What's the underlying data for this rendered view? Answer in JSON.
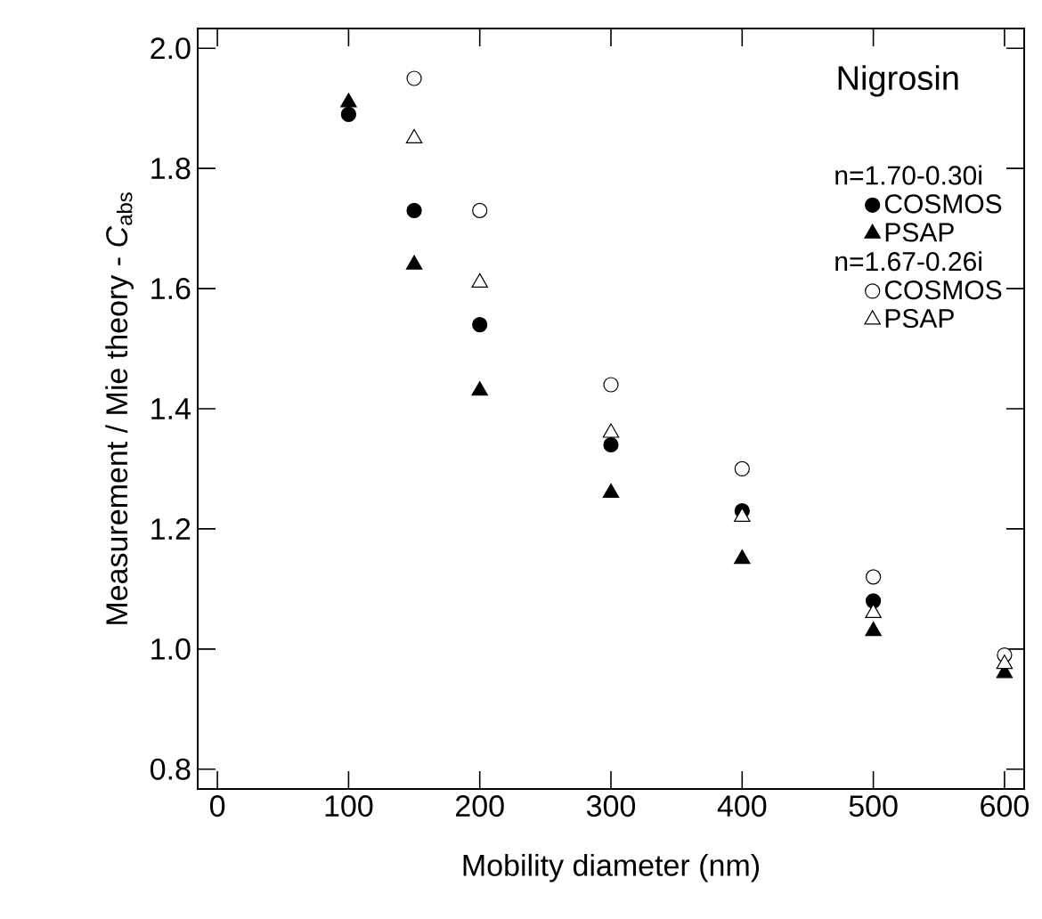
{
  "chart_data": {
    "type": "scatter",
    "xlabel": "Mobility diameter (nm)",
    "ylabel": "Measurement / Mie theory - *C*$_{abs}$",
    "annotations": [
      "Nigrosin",
      "n=1.70-0.30i",
      "n=1.67-0.26i"
    ],
    "xlim": [
      -15,
      615
    ],
    "ylim": [
      0.767,
      2.033
    ],
    "xticks": [
      0,
      100,
      200,
      300,
      400,
      500,
      600
    ],
    "yticks": [
      {
        "value": 0.8,
        "label": "0.8"
      },
      {
        "value": 1.0,
        "label": "1.0"
      },
      {
        "value": 1.2,
        "label": "1.2"
      },
      {
        "value": 1.4,
        "label": "1.4"
      },
      {
        "value": 1.6,
        "label": "1.6"
      },
      {
        "value": 1.8,
        "label": "1.8"
      },
      {
        "value": 2.0,
        "label": "2.0"
      }
    ],
    "legend": "top right",
    "grid": false,
    "series": [
      {
        "name": "COSMOS",
        "color": "#000000",
        "marker": "circle",
        "x": [
          100,
          150,
          200,
          300,
          400,
          500
        ],
        "values": [
          1.89,
          1.73,
          1.54,
          1.34,
          1.23,
          1.08
        ]
      },
      {
        "name": "PSAP",
        "color": "#000000",
        "marker": "triangle",
        "x": [
          100,
          150,
          200,
          300,
          400,
          500,
          600
        ],
        "values": [
          1.91,
          1.64,
          1.43,
          1.26,
          1.15,
          1.03,
          0.96
        ]
      },
      {
        "name": "COSMOS",
        "color": "#ffffff",
        "marker": "circle",
        "x": [
          150,
          200,
          300,
          400,
          500,
          600
        ],
        "values": [
          1.95,
          1.73,
          1.44,
          1.3,
          1.12,
          0.99
        ]
      },
      {
        "name": "PSAP",
        "color": "#ffffff",
        "marker": "triangle",
        "x": [
          150,
          200,
          300,
          400,
          500,
          600
        ],
        "values": [
          1.85,
          1.61,
          1.36,
          1.22,
          1.06,
          0.975
        ]
      }
    ]
  }
}
